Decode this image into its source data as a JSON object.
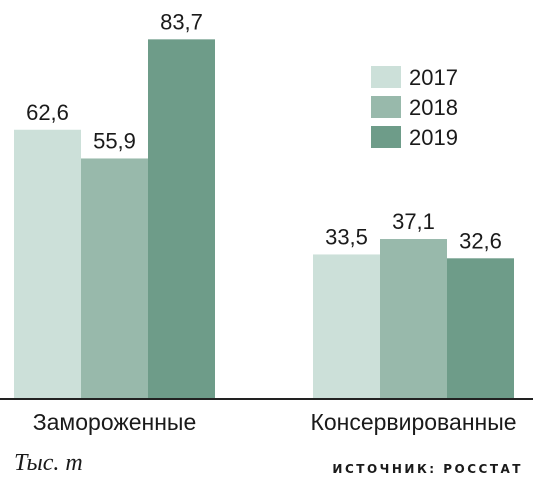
{
  "chart_data": {
    "type": "bar",
    "categories": [
      "Замороженные",
      "Консервированные"
    ],
    "series": [
      {
        "name": "2017",
        "values": [
          62.6,
          33.5
        ]
      },
      {
        "name": "2018",
        "values": [
          55.9,
          37.1
        ]
      },
      {
        "name": "2019",
        "values": [
          83.7,
          32.6
        ]
      }
    ],
    "value_labels": [
      [
        "62,6",
        "33,5"
      ],
      [
        "55,9",
        "37,1"
      ],
      [
        "83,7",
        "32,6"
      ]
    ],
    "ylim": [
      0,
      90
    ],
    "grid": false,
    "legend_position": "top-right",
    "colors": [
      "#cce0d9",
      "#98b9ab",
      "#6e9c89"
    ]
  },
  "unit_label": "Тыс. т",
  "source_label": "ИСТОЧНИК: РОССТАТ"
}
